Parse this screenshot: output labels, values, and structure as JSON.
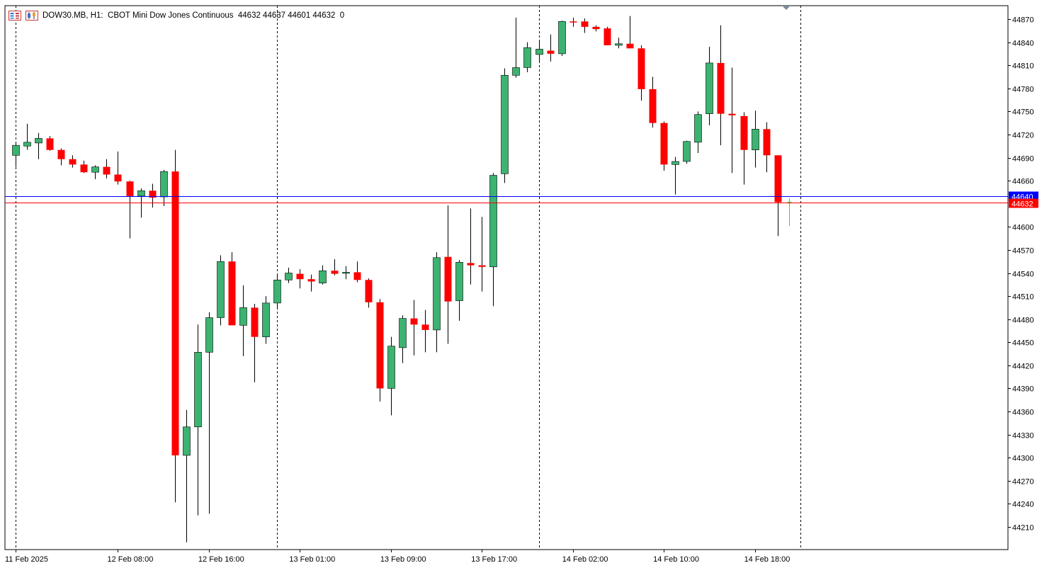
{
  "header": {
    "symbol_line": "DOW30.MB, H1:  CBOT Mini Dow Jones Continuous  44632 44637 44601 44632  0",
    "icons": [
      "menu-list-icon",
      "chart-candles-icon"
    ]
  },
  "colors": {
    "bull": "#3cb371",
    "bear": "#ff0000",
    "wick": "#000000",
    "ask_line": "#0000ff",
    "bid_line": "#ff0000",
    "grid": "#000000",
    "axis": "#000000",
    "background": "#ffffff",
    "last_bar": "#00ff00"
  },
  "chart_data": {
    "type": "candlestick",
    "timeframe": "H1",
    "y_ticks": [
      44870,
      44840,
      44810,
      44780,
      44750,
      44720,
      44690,
      44660,
      44600,
      44570,
      44540,
      44510,
      44480,
      44450,
      44420,
      44390,
      44360,
      44330,
      44300,
      44270,
      44240,
      44210
    ],
    "x_labels": [
      "11 Feb 2025",
      "12 Feb 08:00",
      "12 Feb 16:00",
      "13 Feb 01:00",
      "13 Feb 09:00",
      "13 Feb 17:00",
      "14 Feb 02:00",
      "14 Feb 10:00",
      "14 Feb 18:00"
    ],
    "x_label_bar_index": [
      0,
      9,
      17,
      25,
      33,
      41,
      49,
      57,
      65
    ],
    "day_separator_bar_index": [
      0,
      23,
      46,
      69
    ],
    "ask_price": 44640,
    "bid_price": 44632,
    "ask_label": "44640",
    "bid_label": "44632",
    "ylim": [
      44192,
      44888
    ],
    "candles": [
      [
        44693,
        44708,
        44678,
        44706
      ],
      [
        44705,
        44734,
        44700,
        44710
      ],
      [
        44709,
        44722,
        44688,
        44715
      ],
      [
        44715,
        44718,
        44699,
        44700
      ],
      [
        44700,
        44702,
        44680,
        44688
      ],
      [
        44688,
        44693,
        44677,
        44681
      ],
      [
        44681,
        44686,
        44670,
        44671
      ],
      [
        44671,
        44680,
        44662,
        44678
      ],
      [
        44678,
        44688,
        44663,
        44668
      ],
      [
        44668,
        44698,
        44655,
        44659
      ],
      [
        44659,
        44660,
        44585,
        44640
      ],
      [
        44640,
        44650,
        44612,
        44647
      ],
      [
        44647,
        44656,
        44625,
        44638
      ],
      [
        44639,
        44674,
        44627,
        44672
      ],
      [
        44672,
        44700,
        44242,
        44303
      ],
      [
        44303,
        44362,
        44190,
        44340
      ],
      [
        44340,
        44473,
        44225,
        44437
      ],
      [
        44437,
        44489,
        44227,
        44482
      ],
      [
        44482,
        44563,
        44472,
        44555
      ],
      [
        44555,
        44567,
        44472,
        44472
      ],
      [
        44472,
        44524,
        44432,
        44495
      ],
      [
        44495,
        44500,
        44398,
        44457
      ],
      [
        44457,
        44510,
        44448,
        44501
      ],
      [
        44501,
        44538,
        44493,
        44531
      ],
      [
        44531,
        44547,
        44527,
        44540
      ],
      [
        44539,
        44545,
        44520,
        44532
      ],
      [
        44532,
        44538,
        44516,
        44529
      ],
      [
        44527,
        44550,
        44525,
        44543
      ],
      [
        44543,
        44558,
        44537,
        44539
      ],
      [
        44540,
        44549,
        44532,
        44541
      ],
      [
        44541,
        44555,
        44528,
        44531
      ],
      [
        44531,
        44533,
        44495,
        44502
      ],
      [
        44502,
        44506,
        44373,
        44390
      ],
      [
        44390,
        44457,
        44355,
        44445
      ],
      [
        44443,
        44485,
        44423,
        44481
      ],
      [
        44481,
        44505,
        44433,
        44473
      ],
      [
        44473,
        44492,
        44437,
        44466
      ],
      [
        44466,
        44567,
        44437,
        44560
      ],
      [
        44561,
        44628,
        44448,
        44503
      ],
      [
        44504,
        44557,
        44478,
        44554
      ],
      [
        44553,
        44624,
        44525,
        44550
      ],
      [
        44550,
        44613,
        44516,
        44548
      ],
      [
        44548,
        44670,
        44497,
        44667
      ],
      [
        44669,
        44806,
        44657,
        44797
      ],
      [
        44797,
        44872,
        44794,
        44807
      ],
      [
        44807,
        44840,
        44801,
        44833
      ],
      [
        44824,
        44842,
        44813,
        44831
      ],
      [
        44829,
        44850,
        44815,
        44825
      ],
      [
        44825,
        44868,
        44822,
        44867
      ],
      [
        44867,
        44872,
        44860,
        44866
      ],
      [
        44867,
        44871,
        44852,
        44860
      ],
      [
        44860,
        44862,
        44854,
        44857
      ],
      [
        44858,
        44860,
        44836,
        44836
      ],
      [
        44836,
        44846,
        44832,
        44838
      ],
      [
        44838,
        44874,
        44832,
        44832
      ],
      [
        44832,
        44836,
        44764,
        44779
      ],
      [
        44779,
        44795,
        44729,
        44735
      ],
      [
        44735,
        44737,
        44673,
        44681
      ],
      [
        44681,
        44691,
        44642,
        44685
      ],
      [
        44685,
        44712,
        44682,
        44711
      ],
      [
        44710,
        44750,
        44696,
        44746
      ],
      [
        44747,
        44834,
        44732,
        44813
      ],
      [
        44813,
        44862,
        44706,
        44747
      ],
      [
        44747,
        44807,
        44670,
        44745
      ],
      [
        44744,
        44749,
        44655,
        44700
      ],
      [
        44700,
        44751,
        44677,
        44727
      ],
      [
        44727,
        44736,
        44671,
        44693
      ],
      [
        44693,
        44693,
        44588,
        44632
      ],
      [
        44632,
        44637,
        44601,
        44632
      ]
    ]
  }
}
